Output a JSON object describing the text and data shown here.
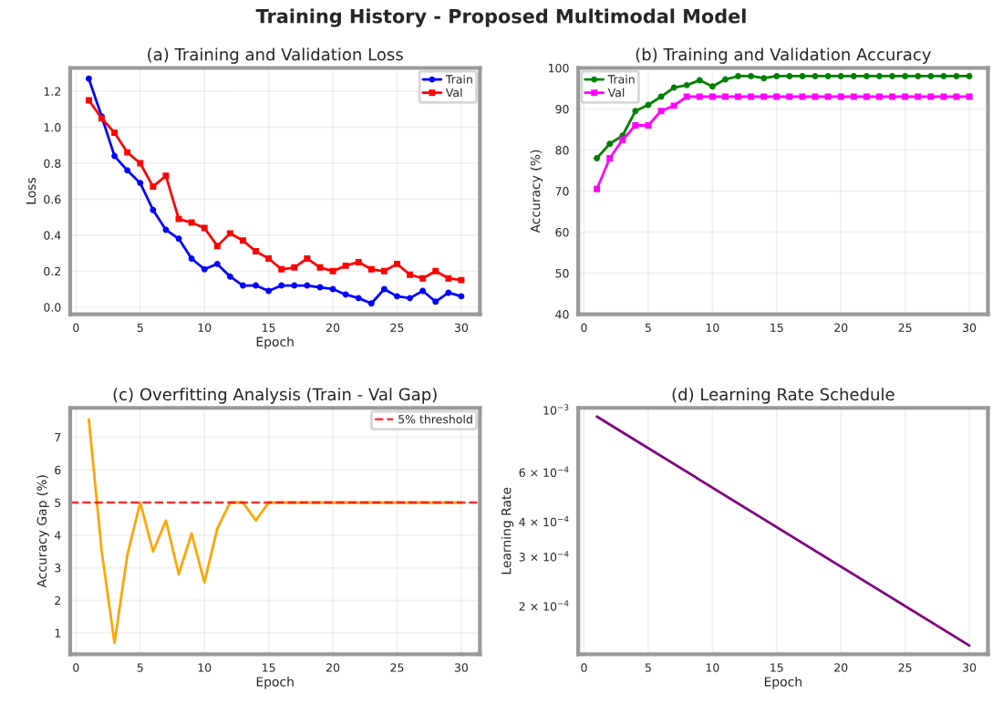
{
  "chart_data": [
    {
      "type": "line",
      "annotations": [
        "Training History - Proposed Multimodal Model"
      ],
      "title": "(a) Training and Validation Loss",
      "xlabel": "Epoch",
      "ylabel": "Loss",
      "x": [
        1,
        2,
        3,
        4,
        5,
        6,
        7,
        8,
        9,
        10,
        11,
        12,
        13,
        14,
        15,
        16,
        17,
        18,
        19,
        20,
        21,
        22,
        23,
        24,
        25,
        26,
        27,
        28,
        29,
        30
      ],
      "series": [
        {
          "name": "Train",
          "color": "#0000ff",
          "marker": "circle",
          "values": [
            1.27,
            1.06,
            0.84,
            0.76,
            0.69,
            0.54,
            0.43,
            0.38,
            0.27,
            0.21,
            0.24,
            0.17,
            0.12,
            0.12,
            0.09,
            0.12,
            0.12,
            0.12,
            0.11,
            0.1,
            0.07,
            0.05,
            0.02,
            0.1,
            0.06,
            0.05,
            0.09,
            0.03,
            0.08,
            0.06
          ]
        },
        {
          "name": "Val",
          "color": "#ff0000",
          "marker": "square",
          "values": [
            1.15,
            1.05,
            0.97,
            0.86,
            0.8,
            0.67,
            0.73,
            0.49,
            0.47,
            0.44,
            0.34,
            0.41,
            0.37,
            0.31,
            0.27,
            0.21,
            0.22,
            0.27,
            0.22,
            0.2,
            0.23,
            0.25,
            0.21,
            0.2,
            0.24,
            0.18,
            0.16,
            0.2,
            0.16,
            0.15
          ]
        }
      ],
      "xlim": [
        -0.45,
        31.45
      ],
      "xticks": [
        0,
        5,
        10,
        15,
        20,
        25,
        30
      ],
      "ylim": [
        -0.04,
        1.33
      ],
      "yticks": [
        {
          "value": 0,
          "label": "0.0"
        },
        0.2,
        0.4,
        0.6,
        0.8,
        {
          "value": 1,
          "label": "1.0"
        },
        1.2
      ],
      "grid": true,
      "legend": "top right",
      "line_style": "solid"
    },
    {
      "type": "line",
      "title": "(b) Training and Validation Accuracy",
      "ylabel": "Accuracy (%)",
      "x": [
        1,
        2,
        3,
        4,
        5,
        6,
        7,
        8,
        9,
        10,
        11,
        12,
        13,
        14,
        15,
        16,
        17,
        18,
        19,
        20,
        21,
        22,
        23,
        24,
        25,
        26,
        27,
        28,
        29,
        30
      ],
      "series": [
        {
          "name": "Train",
          "color": "#008000",
          "marker": "circle",
          "values": [
            78,
            81.5,
            83.5,
            89.5,
            91,
            93,
            95.2,
            95.8,
            97,
            95.5,
            97.2,
            98,
            98,
            97.5,
            98,
            98,
            98,
            98,
            98,
            98,
            98,
            98,
            98,
            98,
            98,
            98,
            98,
            98,
            98,
            98
          ]
        },
        {
          "name": "Val",
          "color": "#ff00ff",
          "marker": "square",
          "values": [
            70.5,
            78,
            82.5,
            86,
            86,
            89.5,
            90.8,
            93,
            93,
            93,
            93,
            93,
            93,
            93,
            93,
            93,
            93,
            93,
            93,
            93,
            93,
            93,
            93,
            93,
            93,
            93,
            93,
            93,
            93,
            93
          ]
        }
      ],
      "xlim": [
        -0.45,
        31.45
      ],
      "xticks": [
        0,
        5,
        10,
        15,
        20,
        25,
        30
      ],
      "ylim": [
        40,
        100
      ],
      "yticks": [
        40,
        50,
        60,
        70,
        80,
        90,
        100
      ],
      "grid": true,
      "legend": "top left",
      "line_style": "solid"
    },
    {
      "type": "line",
      "title": "(c) Overfitting Analysis (Train - Val Gap)",
      "xlabel": "Epoch",
      "ylabel": "Accuracy Gap (%)",
      "x": [
        1,
        2,
        3,
        4,
        5,
        6,
        7,
        8,
        9,
        10,
        11,
        12,
        13,
        14,
        15,
        16,
        17,
        18,
        19,
        20,
        21,
        22,
        23,
        24,
        25,
        26,
        27,
        28,
        29,
        30
      ],
      "series": [
        {
          "color": "#ffa500",
          "marker": "none",
          "values": [
            7.55,
            3.5,
            0.7,
            3.4,
            5.0,
            3.5,
            4.45,
            2.8,
            4.05,
            2.55,
            4.2,
            5,
            5,
            4.45,
            5,
            5,
            5,
            5,
            5,
            5,
            5,
            5,
            5,
            5,
            5,
            5,
            5,
            5,
            5,
            5
          ]
        }
      ],
      "ref_lines": [
        {
          "axis": "y",
          "value": 5,
          "label": "5% threshold",
          "color": "#ff0000",
          "line_style": "dashed"
        }
      ],
      "xlim": [
        -0.45,
        31.45
      ],
      "xticks": [
        0,
        5,
        10,
        15,
        20,
        25,
        30
      ],
      "ylim": [
        0.35,
        7.9
      ],
      "yticks": [
        1,
        2,
        3,
        4,
        5,
        6,
        7
      ],
      "grid": true,
      "legend": "top right",
      "line_style": "solid"
    },
    {
      "type": "line",
      "title": "(d) Learning Rate Schedule",
      "xlabel": "Epoch",
      "ylabel": "Learning Rate",
      "x": [
        1,
        30
      ],
      "series": [
        {
          "color": "#800080",
          "marker": "none",
          "values": [
            0.00095,
            0.000145
          ]
        }
      ],
      "log": "y",
      "xlim": [
        -0.45,
        31.45
      ],
      "xticks": [
        0,
        5,
        10,
        15,
        20,
        25,
        30
      ],
      "ylim": [
        0.000135,
        0.00102
      ],
      "yticks": [
        {
          "value": 0.001,
          "label": "10$^{−3}$"
        },
        {
          "value": 0.0006,
          "label": "6 × 10$^{−4}$"
        },
        {
          "value": 0.0004,
          "label": "4 × 10$^{−4}$"
        },
        {
          "value": 0.0003,
          "label": "3 × 10$^{−4}$"
        },
        {
          "value": 0.0002,
          "label": "2 × 10$^{−4}$"
        }
      ],
      "grid": "x",
      "line_style": "solid"
    }
  ]
}
